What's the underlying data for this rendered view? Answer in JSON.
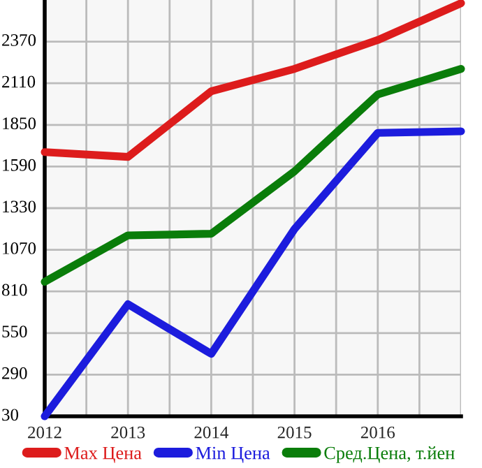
{
  "chart_data": {
    "type": "line",
    "x": [
      2012,
      2013,
      2014,
      2015,
      2016,
      2017
    ],
    "series": [
      {
        "name": "Max Цена",
        "color": "#dd1c1c",
        "values": [
          1680,
          1650,
          2060,
          2200,
          2380,
          2610
        ]
      },
      {
        "name": "Min Цена",
        "color": "#1c1cdd",
        "values": [
          30,
          730,
          420,
          1200,
          1800,
          1810
        ]
      },
      {
        "name": "Сред.Цена, т.йен",
        "color": "#0a7d0a",
        "values": [
          870,
          1160,
          1170,
          1560,
          2040,
          2200
        ]
      }
    ],
    "xlim": [
      2012,
      2017
    ],
    "xticks": [
      2012,
      {
        "value": 2012.5,
        "label": null
      },
      2013,
      {
        "value": 2013.5,
        "label": null
      },
      2014,
      {
        "value": 2014.5,
        "label": null
      },
      2015,
      {
        "value": 2015.5,
        "label": null
      },
      2016,
      {
        "value": 2016.5,
        "label": null
      },
      {
        "value": 2017,
        "label": null
      }
    ],
    "ylim": [
      30,
      2630
    ],
    "yticks": [
      30,
      290,
      550,
      810,
      1070,
      1330,
      1590,
      1850,
      2110,
      2370
    ],
    "grid": true,
    "legend": "bottom",
    "marker": "none",
    "line_style": "solid"
  }
}
